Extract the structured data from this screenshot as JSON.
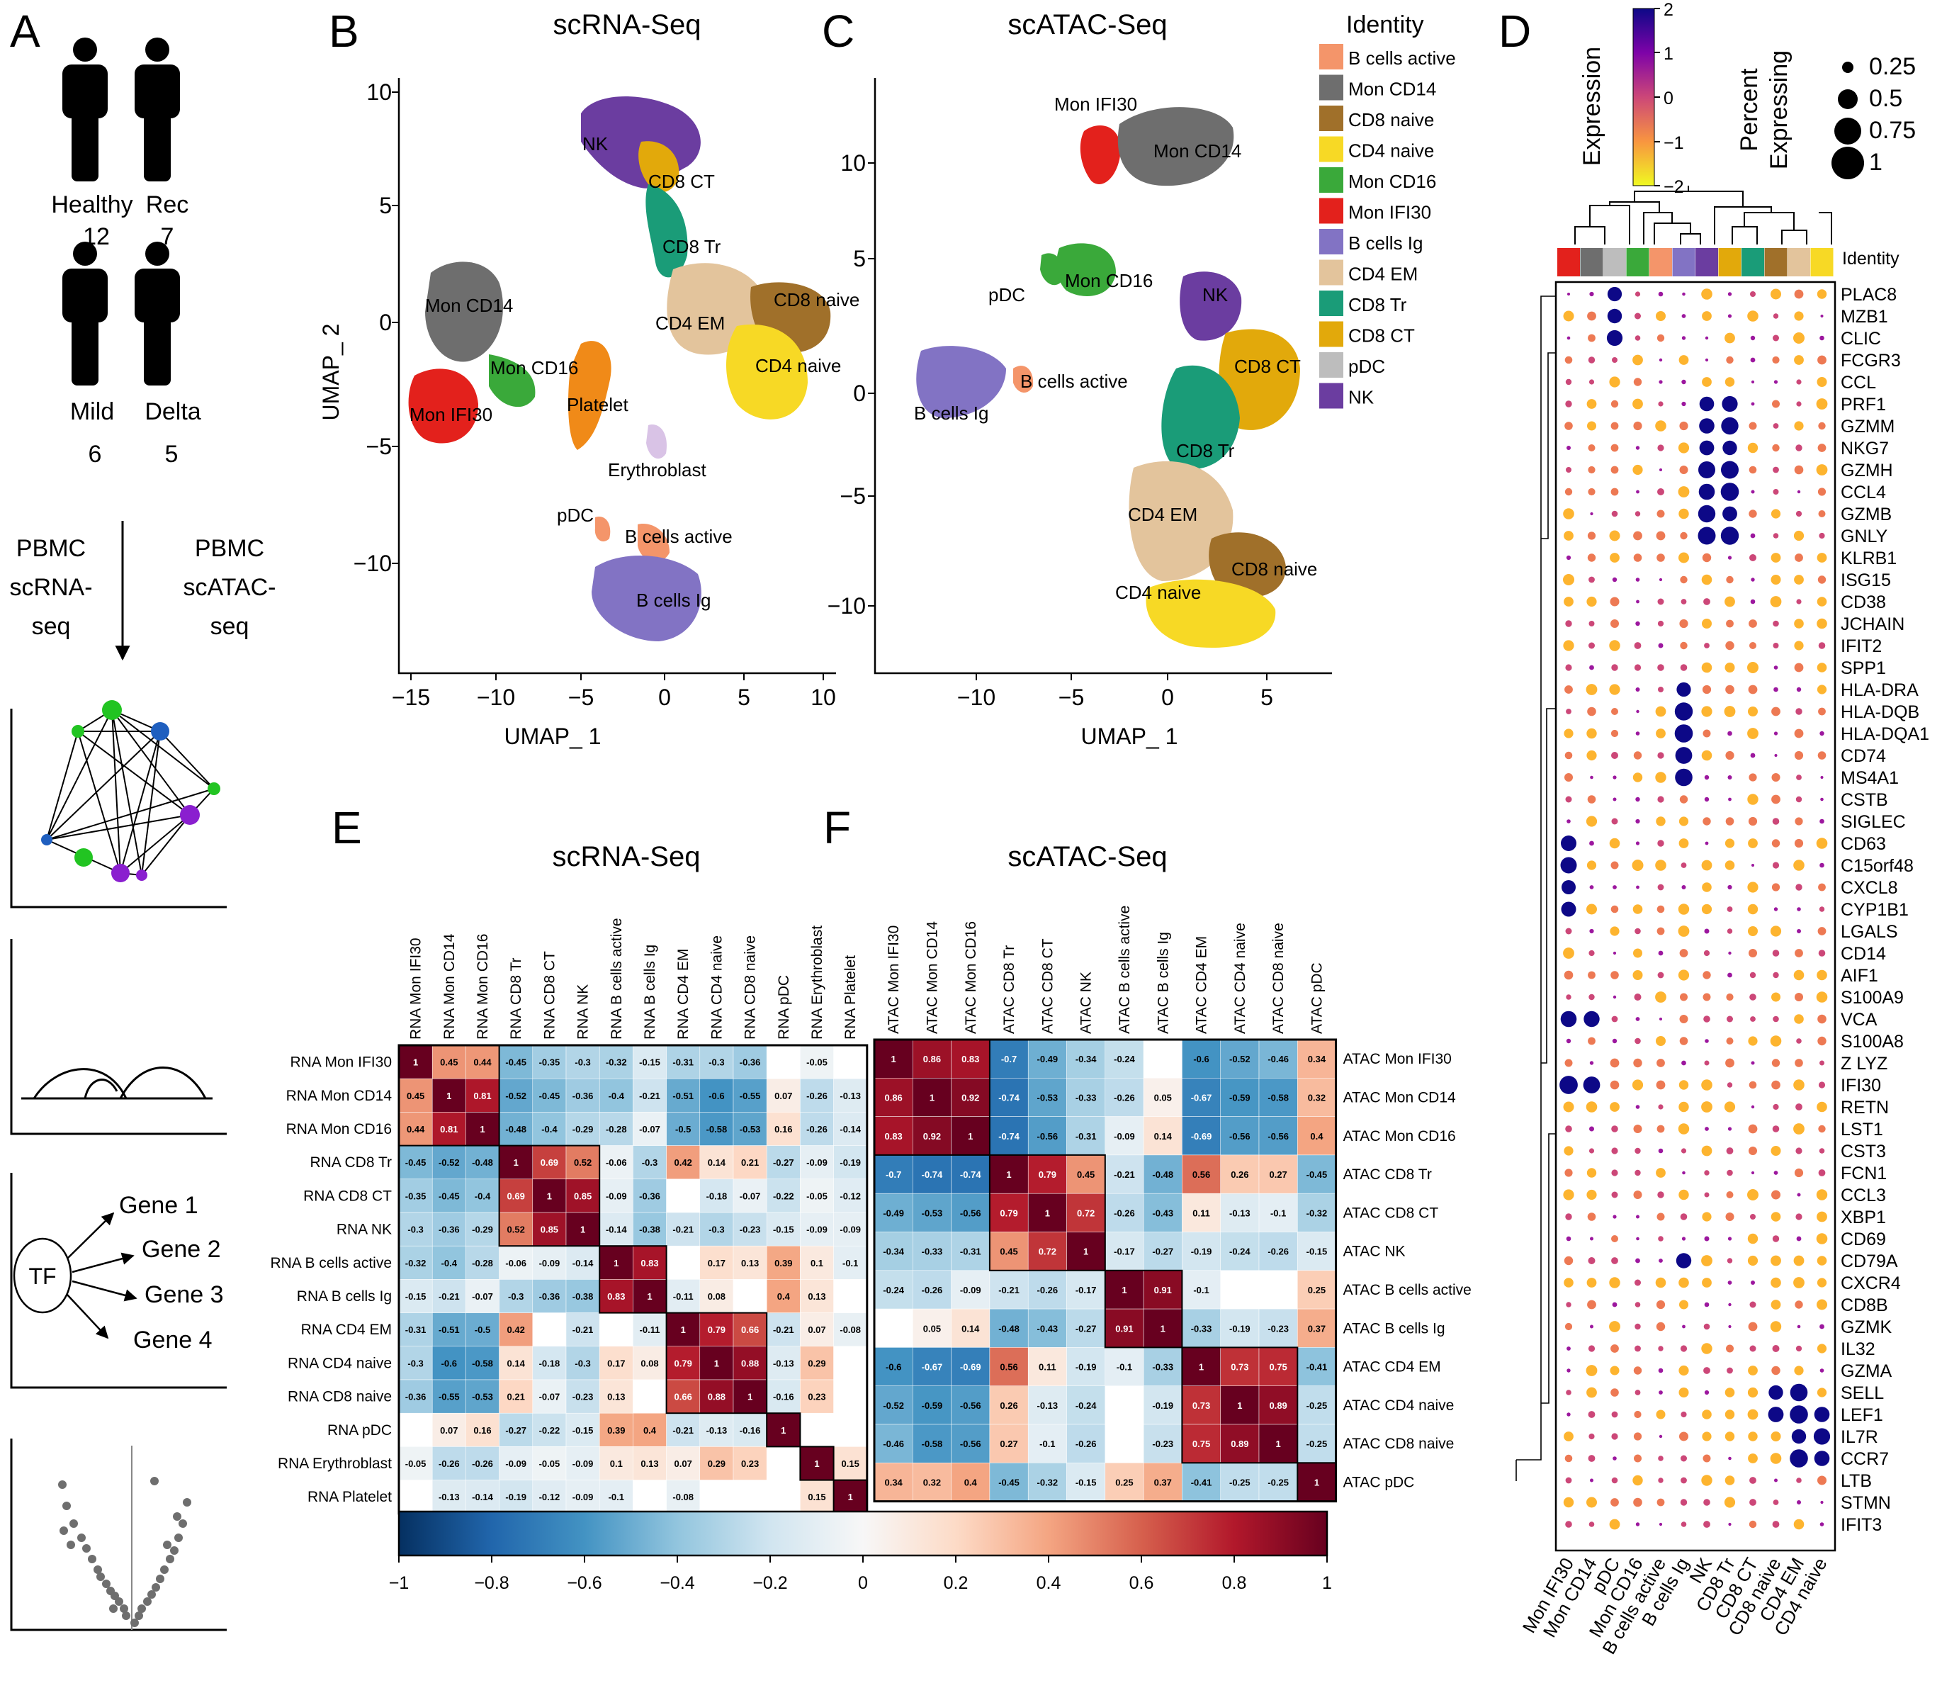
{
  "panels": {
    "A": {
      "label": "A",
      "groups": [
        {
          "name": "Healthy",
          "n": "12"
        },
        {
          "name": "Rec",
          "n": "7"
        },
        {
          "name": "Mild",
          "n": "6"
        },
        {
          "name": "Delta",
          "n": "5"
        }
      ],
      "left_method": [
        "PBMC",
        "scRNA-",
        "seq"
      ],
      "right_method": [
        "PBMC",
        "scATAC-",
        "seq"
      ],
      "tf_label": "TF",
      "genes": [
        "Gene 1",
        "Gene 2",
        "Gene 3",
        "Gene 4"
      ]
    },
    "B": {
      "label": "B",
      "title": "scRNA-Seq",
      "xlabel": "UMAP_ 1",
      "ylabel": "UMAP_ 2",
      "xticks": [
        "−15",
        "−10",
        "−5",
        "0",
        "5",
        "10"
      ],
      "yticks": [
        "10",
        "5",
        "0",
        "−5",
        "−10"
      ],
      "clusters": [
        "NK",
        "CD8 CT",
        "CD8 Tr",
        "CD8 naive",
        "CD4 EM",
        "CD4 naive",
        "Mon CD14",
        "Mon CD16",
        "Mon IFI30",
        "Platelet",
        "Erythroblast",
        "pDC",
        "B cells active",
        "B cells Ig"
      ]
    },
    "C": {
      "label": "C",
      "title": "scATAC-Seq",
      "xlabel": "UMAP_ 1",
      "xticks": [
        "−10",
        "−5",
        "0",
        "5"
      ],
      "yticks": [
        "10",
        "5",
        "0",
        "−5",
        "−10"
      ],
      "clusters": [
        "Mon IFI30",
        "Mon CD14",
        "pDC",
        "Mon CD16",
        "B cells active",
        "B cells Ig",
        "NK",
        "CD8 CT",
        "CD8 Tr",
        "CD4 EM",
        "CD8 naive",
        "CD4 naive"
      ]
    },
    "legend": {
      "title": "Identity",
      "items": [
        {
          "label": "B cells active",
          "color": "#f4956a"
        },
        {
          "label": "Mon CD14",
          "color": "#6e6e6e"
        },
        {
          "label": "CD8 naive",
          "color": "#a0702a"
        },
        {
          "label": "CD4 naive",
          "color": "#f7d925"
        },
        {
          "label": "Mon CD16",
          "color": "#3aa93a"
        },
        {
          "label": "Mon IFI30",
          "color": "#e3211c"
        },
        {
          "label": "B cells Ig",
          "color": "#8273c4"
        },
        {
          "label": "CD4 EM",
          "color": "#e3c49c"
        },
        {
          "label": "CD8 Tr",
          "color": "#1a9c78"
        },
        {
          "label": "CD8 CT",
          "color": "#e2a90b"
        },
        {
          "label": "pDC",
          "color": "#bdbdbd"
        },
        {
          "label": "NK",
          "color": "#6b3da0"
        }
      ]
    },
    "D": {
      "label": "D",
      "expression_title": "Expression",
      "expression_ticks": [
        "2",
        "1",
        "0",
        "−1",
        "−2"
      ],
      "percent_title": [
        "Percent",
        "Expressing"
      ],
      "percent_sizes": [
        "0.25",
        "0.5",
        "0.75",
        "1"
      ],
      "identity_label": "Identity"
    },
    "E": {
      "label": "E",
      "title": "scRNA-Seq"
    },
    "F": {
      "label": "F",
      "title": "scATAC-Seq"
    },
    "colorbar": {
      "ticks": [
        "−1",
        "−0.8",
        "−0.6",
        "−0.4",
        "−0.2",
        "0",
        "0.2",
        "0.4",
        "0.6",
        "0.8",
        "1"
      ]
    }
  },
  "chart_data": [
    {
      "type": "heatmap",
      "id": "E",
      "title": "scRNA-Seq",
      "rows": [
        "RNA Mon IFI30",
        "RNA Mon CD14",
        "RNA Mon CD16",
        "RNA CD8 Tr",
        "RNA CD8 CT",
        "RNA NK",
        "RNA B cells active",
        "RNA B cells Ig",
        "RNA CD4 EM",
        "RNA CD4 naive",
        "RNA CD8 naive",
        "RNA pDC",
        "RNA Erythroblast",
        "RNA Platelet"
      ],
      "cols": [
        "RNA Mon IFI30",
        "RNA Mon CD14",
        "RNA Mon CD16",
        "RNA CD8 Tr",
        "RNA CD8 CT",
        "RNA NK",
        "RNA B cells active",
        "RNA B cells Ig",
        "RNA CD4 EM",
        "RNA CD4 naive",
        "RNA CD8 naive",
        "RNA pDC",
        "RNA Erythroblast",
        "RNA Platelet"
      ],
      "values": [
        [
          1,
          0.45,
          0.44,
          -0.45,
          -0.35,
          -0.3,
          -0.32,
          -0.15,
          -0.31,
          -0.3,
          -0.36,
          null,
          -0.05,
          null
        ],
        [
          0.45,
          1,
          0.81,
          -0.52,
          -0.45,
          -0.36,
          -0.4,
          -0.21,
          -0.51,
          -0.6,
          -0.55,
          0.07,
          -0.26,
          -0.13
        ],
        [
          0.44,
          0.81,
          1,
          -0.48,
          -0.4,
          -0.29,
          -0.28,
          -0.07,
          -0.5,
          -0.58,
          -0.53,
          0.16,
          -0.26,
          -0.14
        ],
        [
          -0.45,
          -0.52,
          -0.48,
          1,
          0.69,
          0.52,
          -0.06,
          -0.3,
          0.42,
          0.14,
          0.21,
          -0.27,
          -0.09,
          -0.19
        ],
        [
          -0.35,
          -0.45,
          -0.4,
          0.69,
          1,
          0.85,
          -0.09,
          -0.36,
          null,
          -0.18,
          -0.07,
          -0.22,
          -0.05,
          -0.12
        ],
        [
          -0.3,
          -0.36,
          -0.29,
          0.52,
          0.85,
          1,
          -0.14,
          -0.38,
          -0.21,
          -0.3,
          -0.23,
          -0.15,
          -0.09,
          -0.09
        ],
        [
          -0.32,
          -0.4,
          -0.28,
          -0.06,
          -0.09,
          -0.14,
          1,
          0.83,
          null,
          0.17,
          0.13,
          0.39,
          0.1,
          -0.1
        ],
        [
          -0.15,
          -0.21,
          -0.07,
          -0.3,
          -0.36,
          -0.38,
          0.83,
          1,
          -0.11,
          0.08,
          null,
          0.4,
          0.13,
          null
        ],
        [
          -0.31,
          -0.51,
          -0.5,
          0.42,
          null,
          -0.21,
          null,
          -0.11,
          1,
          0.79,
          0.66,
          -0.21,
          0.07,
          -0.08
        ],
        [
          -0.3,
          -0.6,
          -0.58,
          0.14,
          -0.18,
          -0.3,
          0.17,
          0.08,
          0.79,
          1,
          0.88,
          -0.13,
          0.29,
          null
        ],
        [
          -0.36,
          -0.55,
          -0.53,
          0.21,
          -0.07,
          -0.23,
          0.13,
          null,
          0.66,
          0.88,
          1,
          -0.16,
          0.23,
          null
        ],
        [
          null,
          0.07,
          0.16,
          -0.27,
          -0.22,
          -0.15,
          0.39,
          0.4,
          -0.21,
          -0.13,
          -0.16,
          1,
          null,
          null
        ],
        [
          -0.05,
          -0.26,
          -0.26,
          -0.09,
          -0.05,
          -0.09,
          0.1,
          0.13,
          0.07,
          0.29,
          0.23,
          null,
          1,
          0.15
        ],
        [
          null,
          -0.13,
          -0.14,
          -0.19,
          -0.12,
          -0.09,
          -0.1,
          null,
          -0.08,
          null,
          null,
          null,
          0.15,
          1
        ]
      ]
    },
    {
      "type": "heatmap",
      "id": "F",
      "title": "scATAC-Seq",
      "rows": [
        "ATAC Mon IFI30",
        "ATAC Mon CD14",
        "ATAC Mon CD16",
        "ATAC CD8 Tr",
        "ATAC CD8 CT",
        "ATAC NK",
        "ATAC B cells active",
        "ATAC B cells Ig",
        "ATAC CD4 EM",
        "ATAC CD4 naive",
        "ATAC CD8 naive",
        "ATAC pDC"
      ],
      "cols": [
        "ATAC Mon IFI30",
        "ATAC Mon CD14",
        "ATAC Mon CD16",
        "ATAC CD8 Tr",
        "ATAC CD8 CT",
        "ATAC NK",
        "ATAC B cells active",
        "ATAC B cells Ig",
        "ATAC CD4 EM",
        "ATAC CD4 naive",
        "ATAC CD8 naive",
        "ATAC pDC"
      ],
      "values": [
        [
          1,
          0.86,
          0.83,
          -0.7,
          -0.49,
          -0.34,
          -0.24,
          null,
          -0.6,
          -0.52,
          -0.46,
          0.34
        ],
        [
          0.86,
          1,
          0.92,
          -0.74,
          -0.53,
          -0.33,
          -0.26,
          0.05,
          -0.67,
          -0.59,
          -0.58,
          0.32
        ],
        [
          0.83,
          0.92,
          1,
          -0.74,
          -0.56,
          -0.31,
          -0.09,
          0.14,
          -0.69,
          -0.56,
          -0.56,
          0.4
        ],
        [
          -0.7,
          -0.74,
          -0.74,
          1,
          0.79,
          0.45,
          -0.21,
          -0.48,
          0.56,
          0.26,
          0.27,
          -0.45
        ],
        [
          -0.49,
          -0.53,
          -0.56,
          0.79,
          1,
          0.72,
          -0.26,
          -0.43,
          0.11,
          -0.13,
          -0.1,
          -0.32
        ],
        [
          -0.34,
          -0.33,
          -0.31,
          0.45,
          0.72,
          1,
          -0.17,
          -0.27,
          -0.19,
          -0.24,
          -0.26,
          -0.15
        ],
        [
          -0.24,
          -0.26,
          -0.09,
          -0.21,
          -0.26,
          -0.17,
          1,
          0.91,
          -0.1,
          null,
          null,
          0.25
        ],
        [
          null,
          0.05,
          0.14,
          -0.48,
          -0.43,
          -0.27,
          0.91,
          1,
          -0.33,
          -0.19,
          -0.23,
          0.37
        ],
        [
          -0.6,
          -0.67,
          -0.69,
          0.56,
          0.11,
          -0.19,
          -0.1,
          -0.33,
          1,
          0.73,
          0.75,
          -0.41
        ],
        [
          -0.52,
          -0.59,
          -0.56,
          0.26,
          -0.13,
          -0.24,
          null,
          -0.19,
          0.73,
          1,
          0.89,
          -0.25
        ],
        [
          -0.46,
          -0.58,
          -0.56,
          0.27,
          -0.1,
          -0.26,
          null,
          -0.23,
          0.75,
          0.89,
          1,
          -0.25
        ],
        [
          0.34,
          0.32,
          0.4,
          -0.45,
          -0.32,
          -0.15,
          0.25,
          0.37,
          -0.41,
          -0.25,
          -0.25,
          1
        ]
      ]
    },
    {
      "type": "scatter",
      "id": "D",
      "subtype": "dotplot",
      "genes": [
        "PLAC8",
        "MZB1",
        "CLIC",
        "FCGR3",
        "CCL",
        "PRF1",
        "GZMM",
        "NKG7",
        "GZMH",
        "CCL4",
        "GZMB",
        "GNLY",
        "KLRB1",
        "ISG15",
        "CD38",
        "JCHAIN",
        "IFIT2",
        "SPP1",
        "HLA-DRA",
        "HLA-DQB",
        "HLA-DQA1",
        "CD74",
        "MS4A1",
        "CSTB",
        "SIGLEC",
        "CD63",
        "C15orf48",
        "CXCL8",
        "CYP1B1",
        "LGALS",
        "CD14",
        "AIF1",
        "S100A9",
        "VCA",
        "S100A8",
        "Z LYZ",
        "IFI30",
        "RETN",
        "LST1",
        "CST3",
        "FCN1",
        "CCL3",
        "XBP1",
        "CD69",
        "CD79A",
        "CXCR4",
        "CD8B",
        "GZMK",
        "IL32",
        "GZMA",
        "SELL",
        "LEF1",
        "IL7R",
        "CCR7",
        "LTB",
        "STMN",
        "IFIT3"
      ],
      "identities": [
        "Mon IFI30",
        "Mon CD14",
        "pDC",
        "Mon CD16",
        "B cells active",
        "B cells Ig",
        "NK",
        "CD8 Tr",
        "CD8 CT",
        "CD8 naive",
        "CD4 EM",
        "CD4 naive"
      ],
      "expression_range": [
        -2,
        2
      ],
      "percent_range": [
        0,
        1
      ]
    }
  ]
}
